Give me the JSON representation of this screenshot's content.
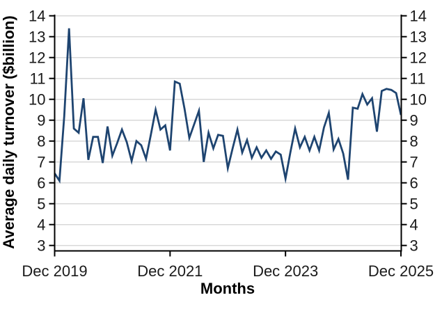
{
  "chart_data": {
    "type": "line",
    "title": "",
    "xlabel": "Months",
    "ylabel": "Average daily turnover ($billion)",
    "frequency": "monthly",
    "x_start": "Dec 2019",
    "x_end": "Dec 2025",
    "x_tick_labels": [
      "Dec 2019",
      "Dec 2021",
      "Dec 2023",
      "Dec 2025"
    ],
    "x_tick_month_index": [
      0,
      24,
      48,
      72
    ],
    "y_ticks": [
      3,
      4,
      5,
      6,
      7,
      8,
      9,
      10,
      11,
      12,
      13,
      14
    ],
    "ylim": [
      2.75,
      14.1
    ],
    "grid": "horizontal",
    "legend": "none",
    "series": [
      {
        "name": "Average daily turnover ($billion)",
        "values": [
          6.45,
          6.1,
          9.2,
          13.4,
          8.6,
          8.4,
          10.05,
          7.1,
          8.2,
          8.2,
          6.95,
          8.7,
          7.3,
          7.9,
          8.55,
          7.95,
          7.05,
          8.0,
          7.8,
          7.15,
          8.3,
          9.5,
          8.55,
          8.75,
          7.55,
          10.85,
          10.75,
          9.55,
          8.15,
          8.8,
          9.45,
          7.0,
          8.4,
          7.65,
          8.3,
          8.25,
          6.7,
          7.65,
          8.55,
          7.45,
          8.05,
          7.2,
          7.7,
          7.2,
          7.55,
          7.15,
          7.5,
          7.35,
          6.2,
          7.45,
          8.6,
          7.7,
          8.2,
          7.55,
          8.2,
          7.55,
          8.65,
          9.35,
          7.6,
          8.1,
          7.4,
          6.15,
          9.6,
          9.55,
          10.25,
          9.75,
          10.05,
          8.45,
          10.4,
          10.5,
          10.45,
          10.3,
          9.25
        ]
      }
    ],
    "colors": {
      "line": "#1E4470",
      "grid": "#D8D8D8",
      "axis": "#000000",
      "tick_text": "#1A1A1A"
    }
  }
}
